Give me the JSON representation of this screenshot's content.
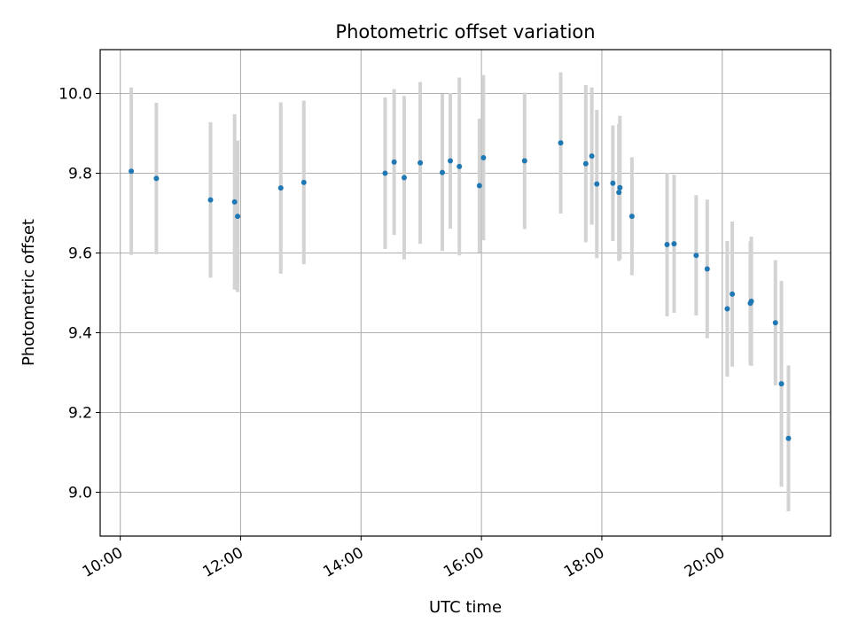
{
  "chart_data": {
    "type": "scatter",
    "title": "Photometric offset variation",
    "xlabel": "UTC time",
    "ylabel": "Photometric offset",
    "x_ticks": [
      "10:00",
      "12:00",
      "14:00",
      "16:00",
      "18:00",
      "20:00"
    ],
    "y_ticks": [
      "9.0",
      "9.2",
      "9.4",
      "9.6",
      "9.8",
      "10.0"
    ],
    "xlim": [
      "09:40",
      "21:48"
    ],
    "ylim": [
      8.89,
      10.11
    ],
    "grid": true,
    "marker_color": "#1f77b4",
    "errorbar_color": "#d3d3d3",
    "points": [
      {
        "time": "10:11",
        "y": 9.805,
        "err": 0.21
      },
      {
        "time": "10:36",
        "y": 9.787,
        "err": 0.19
      },
      {
        "time": "11:30",
        "y": 9.733,
        "err": 0.195
      },
      {
        "time": "11:54",
        "y": 9.728,
        "err": 0.22
      },
      {
        "time": "11:57",
        "y": 9.692,
        "err": 0.19
      },
      {
        "time": "12:40",
        "y": 9.763,
        "err": 0.215
      },
      {
        "time": "13:03",
        "y": 9.777,
        "err": 0.205
      },
      {
        "time": "14:24",
        "y": 9.8,
        "err": 0.19
      },
      {
        "time": "14:33",
        "y": 9.828,
        "err": 0.183
      },
      {
        "time": "14:43",
        "y": 9.789,
        "err": 0.205
      },
      {
        "time": "14:59",
        "y": 9.826,
        "err": 0.203
      },
      {
        "time": "15:21",
        "y": 9.802,
        "err": 0.197
      },
      {
        "time": "15:29",
        "y": 9.831,
        "err": 0.17
      },
      {
        "time": "15:38",
        "y": 9.817,
        "err": 0.223
      },
      {
        "time": "15:58",
        "y": 9.769,
        "err": 0.168
      },
      {
        "time": "16:02",
        "y": 9.839,
        "err": 0.207
      },
      {
        "time": "16:43",
        "y": 9.831,
        "err": 0.171
      },
      {
        "time": "17:19",
        "y": 9.876,
        "err": 0.177
      },
      {
        "time": "17:44",
        "y": 9.824,
        "err": 0.197
      },
      {
        "time": "17:50",
        "y": 9.843,
        "err": 0.172
      },
      {
        "time": "17:55",
        "y": 9.773,
        "err": 0.186
      },
      {
        "time": "18:11",
        "y": 9.775,
        "err": 0.145
      },
      {
        "time": "18:17",
        "y": 9.752,
        "err": 0.172
      },
      {
        "time": "18:18",
        "y": 9.764,
        "err": 0.18
      },
      {
        "time": "18:30",
        "y": 9.692,
        "err": 0.148
      },
      {
        "time": "19:05",
        "y": 9.621,
        "err": 0.18
      },
      {
        "time": "19:12",
        "y": 9.623,
        "err": 0.173
      },
      {
        "time": "19:34",
        "y": 9.594,
        "err": 0.151
      },
      {
        "time": "19:45",
        "y": 9.56,
        "err": 0.174
      },
      {
        "time": "20:05",
        "y": 9.46,
        "err": 0.17
      },
      {
        "time": "20:10",
        "y": 9.497,
        "err": 0.182
      },
      {
        "time": "20:28",
        "y": 9.474,
        "err": 0.155
      },
      {
        "time": "20:29",
        "y": 9.479,
        "err": 0.162
      },
      {
        "time": "20:53",
        "y": 9.425,
        "err": 0.157
      },
      {
        "time": "20:59",
        "y": 9.272,
        "err": 0.258
      },
      {
        "time": "21:06",
        "y": 9.135,
        "err": 0.183
      }
    ]
  }
}
